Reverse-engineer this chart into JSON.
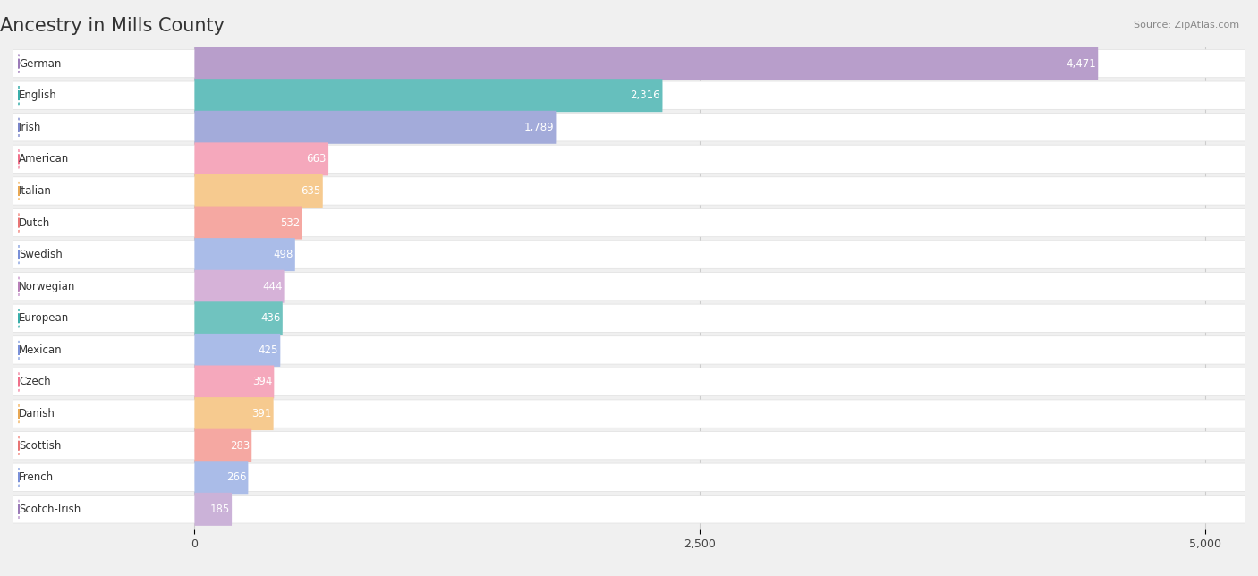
{
  "title": "Ancestry in Mills County",
  "source": "Source: ZipAtlas.com",
  "categories": [
    "German",
    "English",
    "Irish",
    "American",
    "Italian",
    "Dutch",
    "Swedish",
    "Norwegian",
    "European",
    "Mexican",
    "Czech",
    "Danish",
    "Scottish",
    "French",
    "Scotch-Irish"
  ],
  "values": [
    4471,
    2316,
    1789,
    663,
    635,
    532,
    498,
    444,
    436,
    425,
    394,
    391,
    283,
    266,
    185
  ],
  "bar_colors": [
    "#b89ecb",
    "#66bfbd",
    "#a3abda",
    "#f5a8bc",
    "#f6ca8f",
    "#f5a8a2",
    "#aabce8",
    "#d6b2d8",
    "#70c3bf",
    "#aabce8",
    "#f5a8bc",
    "#f6ca8f",
    "#f5a8a2",
    "#aabce8",
    "#cbb2d8"
  ],
  "icon_colors": [
    "#9b7bb8",
    "#3aaeaa",
    "#7a85c8",
    "#f0708a",
    "#e8a855",
    "#e87575",
    "#7a90d8",
    "#b880b8",
    "#3aaeaa",
    "#7a90d8",
    "#f0708a",
    "#e8a855",
    "#e87575",
    "#7a90d8",
    "#9b7bb8"
  ],
  "xlim_max": 5000,
  "xticks": [
    0,
    2500,
    5000
  ],
  "xtick_labels": [
    "0",
    "2,500",
    "5,000"
  ],
  "background_color": "#f0f0f0",
  "row_bg_color": "#ffffff",
  "title_fontsize": 15,
  "value_fontsize": 8.5,
  "label_fontsize": 8.5
}
